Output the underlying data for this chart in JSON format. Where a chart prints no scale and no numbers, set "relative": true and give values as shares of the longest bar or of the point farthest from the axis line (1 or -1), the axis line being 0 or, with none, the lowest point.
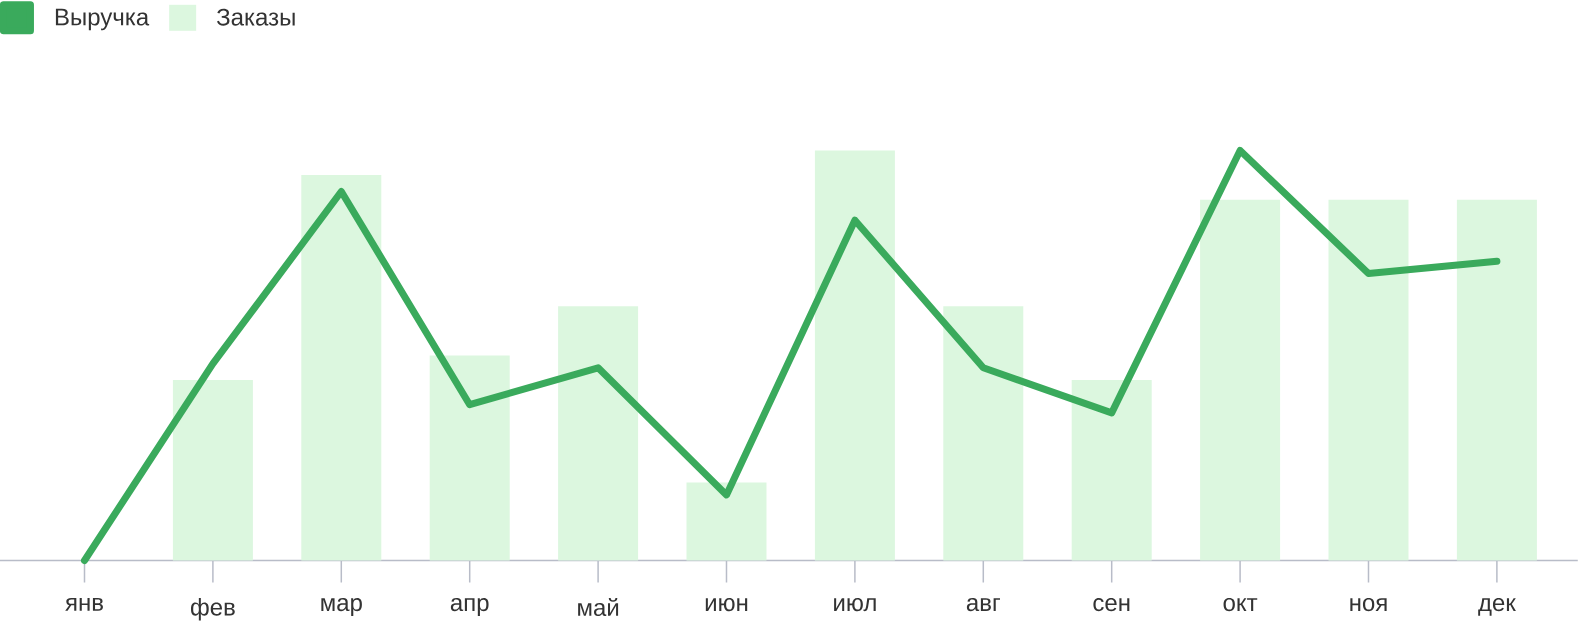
{
  "chart_data": {
    "type": "bar",
    "relative": true,
    "legend": "top left",
    "categories": [
      "янв",
      "фев",
      "мар",
      "апр",
      "май",
      "июн",
      "июл",
      "авг",
      "сен",
      "окт",
      "ноя",
      "дек"
    ],
    "series": [
      {
        "name": "Выручка",
        "type": "line",
        "color": "#3aaa5c",
        "values": [
          0,
          0.48,
          0.9,
          0.38,
          0.47,
          0.16,
          0.83,
          0.47,
          0.36,
          1,
          0.7,
          0.73
        ]
      },
      {
        "name": "Заказы",
        "color": "#dcf7df",
        "values": [
          0,
          0.44,
          0.94,
          0.5,
          0.62,
          0.19,
          1,
          0.62,
          0.44,
          0.88,
          0.88,
          0.88
        ]
      }
    ]
  }
}
